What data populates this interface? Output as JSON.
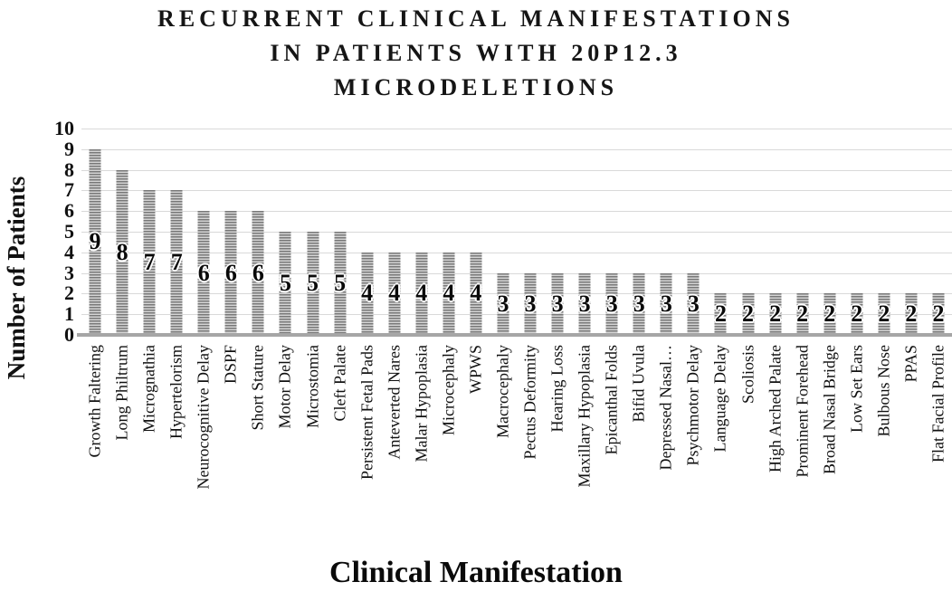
{
  "title": {
    "lines": [
      "RECURRENT CLINICAL MANIFESTATIONS",
      "IN PATIENTS WITH 20P12.3",
      "MICRODELETIONS"
    ]
  },
  "y_axis": {
    "title": "Number of Patients",
    "ticks": [
      "10",
      "9",
      "8",
      "7",
      "6",
      "5",
      "4",
      "3",
      "2",
      "1",
      "0"
    ]
  },
  "x_axis": {
    "title": "Clinical Manifestation"
  },
  "chart_data": {
    "type": "bar",
    "title": "RECURRENT CLINICAL MANIFESTATIONS IN PATIENTS WITH 20P12.3 MICRODELETIONS",
    "xlabel": "Clinical Manifestation",
    "ylabel": "Number of Patients",
    "ylim": [
      0,
      10
    ],
    "grid": true,
    "legend": "none",
    "bar_style": "gray horizontal-stripe fill, value labels centered inside bars",
    "categories": [
      "Growth Faltering",
      "Long Philtrum",
      "Micrognathia",
      "Hypertelorism",
      "Neurocognitive Delay",
      "DSPF",
      "Short Stature",
      "Motor Delay",
      "Microstomia",
      "Cleft Palate",
      "Persistent Fetal Pads",
      "Anteverted Nares",
      "Malar Hypoplasia",
      "Microcephaly",
      "WPWS",
      "Macrocephaly",
      "Pectus Deformity",
      "Hearing Loss",
      "Maxillary Hypoplasia",
      "Epicanthal Folds",
      "Bifid Uvula",
      "Depressed Nasal…",
      "Psychmotor Delay",
      "Language Delay",
      "Scoliosis",
      "High Arched Palate",
      "Prominent Forehead",
      "Broad Nasal Bridge",
      "Low Set Ears",
      "Bulbous Nose",
      "PPAS",
      "Flat Facial Profile"
    ],
    "values": [
      9,
      8,
      7,
      7,
      6,
      6,
      6,
      5,
      5,
      5,
      4,
      4,
      4,
      4,
      4,
      3,
      3,
      3,
      3,
      3,
      3,
      3,
      3,
      2,
      2,
      2,
      2,
      2,
      2,
      2,
      2,
      2
    ]
  },
  "colors": {
    "bar_stripe_dark": "#787878",
    "bar_stripe_light": "#d4d4d4",
    "gridline": "#d9d9d9",
    "axis_line": "#a6a6a6",
    "text": "#111111"
  }
}
